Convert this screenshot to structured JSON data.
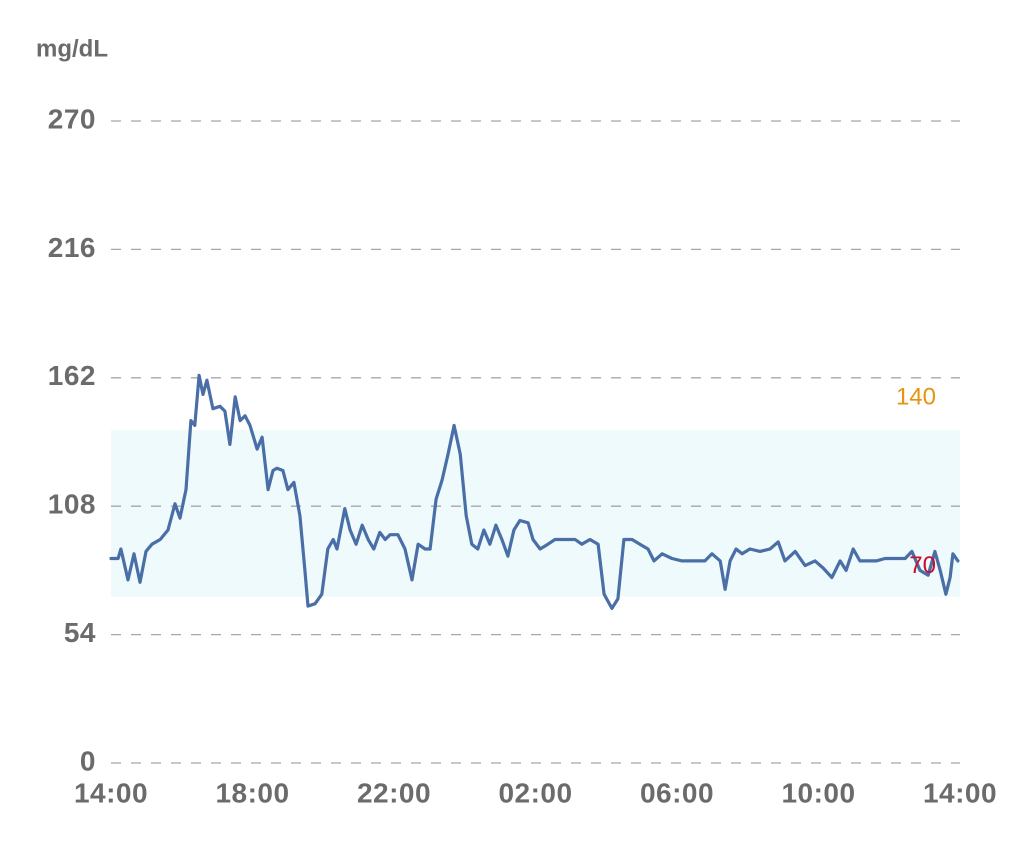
{
  "chart_data": {
    "type": "line",
    "y_label": "mg/dL",
    "xlim": [
      0,
      24
    ],
    "xticks": [
      {
        "value": 0,
        "label": "14:00"
      },
      {
        "value": 4,
        "label": "18:00"
      },
      {
        "value": 8,
        "label": "22:00"
      },
      {
        "value": 12,
        "label": "02:00"
      },
      {
        "value": 16,
        "label": "06:00"
      },
      {
        "value": 20,
        "label": "10:00"
      },
      {
        "value": 24,
        "label": "14:00"
      }
    ],
    "ylim": [
      0,
      270
    ],
    "yticks": [
      0,
      54,
      108,
      162,
      216,
      270
    ],
    "grid": true,
    "target_range": {
      "low": 70,
      "high": 140,
      "color": "#eefafc",
      "low_color": "#c8102e",
      "high_color": "#e8930c"
    },
    "series": [
      {
        "color": "#4a6ea6",
        "x": [
          0,
          0.2,
          0.28,
          0.48,
          0.65,
          0.82,
          0.99,
          1.16,
          1.39,
          1.61,
          1.81,
          1.95,
          2.12,
          2.26,
          2.37,
          2.49,
          2.6,
          2.71,
          2.88,
          3.08,
          3.22,
          3.36,
          3.51,
          3.65,
          3.79,
          3.93,
          4.13,
          4.27,
          4.44,
          4.58,
          4.69,
          4.86,
          5.0,
          5.17,
          5.34,
          5.48,
          5.57,
          5.77,
          5.96,
          6.13,
          6.28,
          6.39,
          6.61,
          6.76,
          6.93,
          7.1,
          7.27,
          7.43,
          7.6,
          7.75,
          7.89,
          8.11,
          8.31,
          8.51,
          8.68,
          8.88,
          9.02,
          9.19,
          9.36,
          9.53,
          9.7,
          9.87,
          10.04,
          10.2,
          10.37,
          10.54,
          10.71,
          10.88,
          11.05,
          11.22,
          11.39,
          11.56,
          11.79,
          11.93,
          12.13,
          12.35,
          12.55,
          12.83,
          13.12,
          13.31,
          13.54,
          13.77,
          13.94,
          14.16,
          14.33,
          14.5,
          14.73,
          14.95,
          15.18,
          15.35,
          15.58,
          15.86,
          16.14,
          16.51,
          16.79,
          16.99,
          17.22,
          17.36,
          17.5,
          17.67,
          17.84,
          18.06,
          18.35,
          18.63,
          18.86,
          19.05,
          19.34,
          19.62,
          19.9,
          20.13,
          20.38,
          20.61,
          20.78,
          20.98,
          21.17,
          21.4,
          21.63,
          21.88,
          22.16,
          22.45,
          22.64,
          22.87,
          23.1,
          23.29,
          23.44,
          23.6,
          23.72,
          23.8,
          23.94
        ],
        "values": [
          86,
          86,
          90,
          77,
          88,
          76,
          89,
          92,
          94,
          98,
          109,
          103,
          115,
          144,
          142,
          163,
          155,
          161,
          149,
          150,
          148,
          134,
          154,
          144,
          146,
          142,
          132,
          137,
          115,
          123,
          124,
          123,
          115,
          118,
          104,
          81,
          66,
          67,
          71,
          90,
          94,
          90,
          107,
          98,
          92,
          100,
          94,
          90,
          97,
          94,
          96,
          96,
          90,
          77,
          92,
          90,
          90,
          111,
          119,
          130,
          142,
          130,
          104,
          92,
          90,
          98,
          92,
          100,
          94,
          87,
          98,
          102,
          101,
          94,
          90,
          92,
          94,
          94,
          94,
          92,
          94,
          92,
          71,
          65,
          69,
          94,
          94,
          92,
          90,
          85,
          88,
          86,
          85,
          85,
          85,
          88,
          85,
          73,
          85,
          90,
          88,
          90,
          89,
          90,
          93,
          85,
          89,
          83,
          85,
          82,
          78,
          85,
          81,
          90,
          85,
          85,
          85,
          86,
          86,
          86,
          89,
          81,
          79,
          89,
          81,
          71,
          78,
          88,
          85
        ]
      }
    ]
  }
}
